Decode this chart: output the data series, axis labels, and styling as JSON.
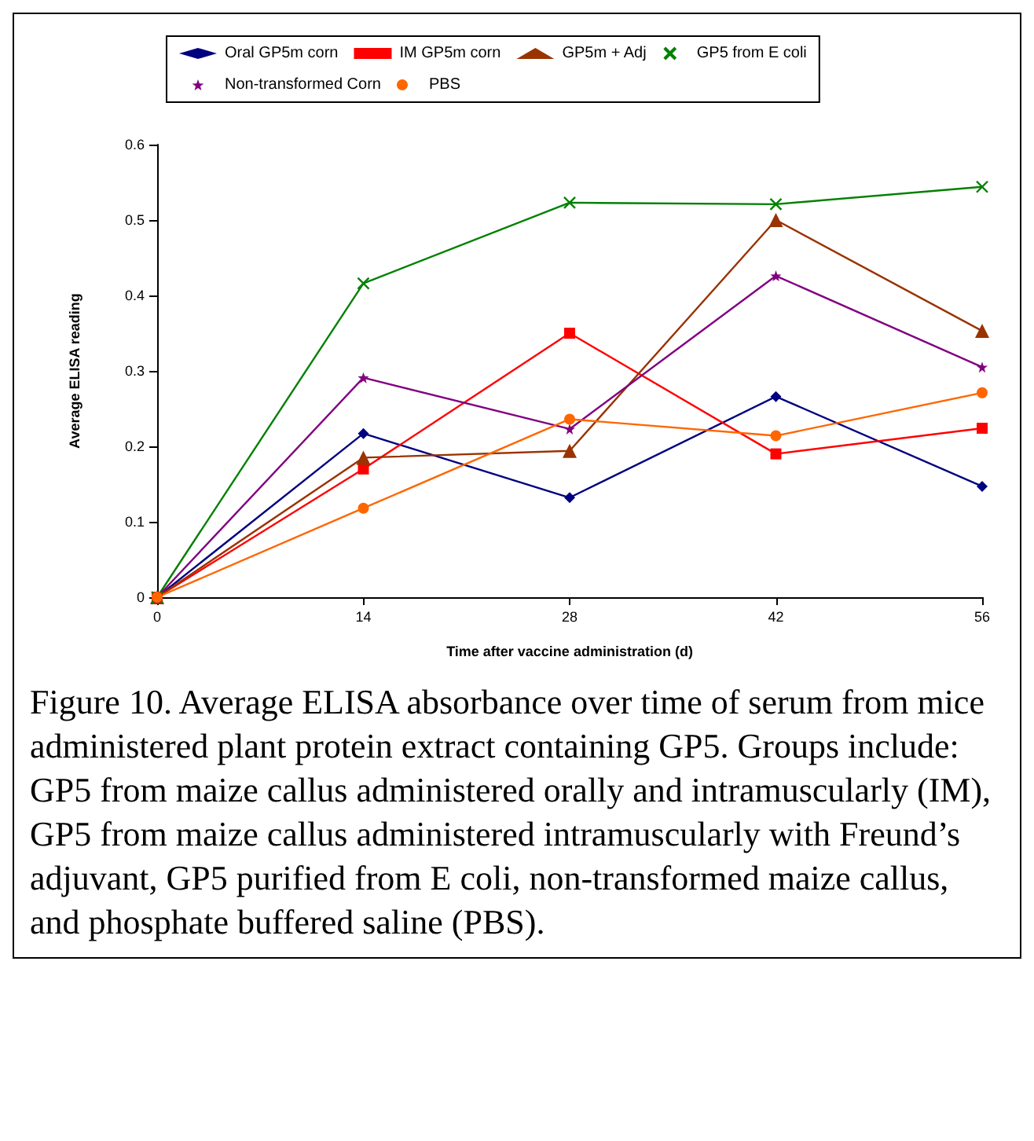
{
  "chart_data": {
    "type": "line",
    "x": [
      0,
      14,
      28,
      42,
      56
    ],
    "series": [
      {
        "name": "Oral GP5m corn",
        "color": "#000080",
        "marker": "diamond",
        "values": [
          0,
          0.217,
          0.132,
          0.266,
          0.147
        ]
      },
      {
        "name": "IM GP5m corn",
        "color": "#ff0000",
        "marker": "square",
        "values": [
          0,
          0.17,
          0.35,
          0.19,
          0.224
        ]
      },
      {
        "name": "GP5m + Adj",
        "color": "#993300",
        "marker": "triangle",
        "values": [
          0,
          0.185,
          0.194,
          0.5,
          0.353
        ]
      },
      {
        "name": "GP5 from E coli",
        "color": "#008000",
        "marker": "cross",
        "values": [
          0,
          0.416,
          0.523,
          0.521,
          0.544
        ]
      },
      {
        "name": "Non-transformed Corn",
        "color": "#800080",
        "marker": "star",
        "values": [
          0,
          0.291,
          0.223,
          0.426,
          0.305
        ]
      },
      {
        "name": "PBS",
        "color": "#ff6600",
        "marker": "circle",
        "values": [
          0,
          0.118,
          0.236,
          0.214,
          0.271
        ]
      }
    ],
    "xlabel": "Time after vaccine administration (d)",
    "ylabel": "Average ELISA reading",
    "xlim": [
      0,
      56
    ],
    "xticks": [
      0,
      14,
      28,
      42,
      56
    ],
    "ylim": [
      0,
      0.6
    ],
    "yticks": [
      0,
      0.1,
      0.2,
      0.3,
      0.4,
      0.5,
      0.6
    ],
    "grid": false,
    "legend": "top",
    "line_style": "solid",
    "annotations": [
      "Figure 10. Average ELISA absorbance over time of serum from mice administered plant protein extract containing GP5.  Groups include: GP5 from maize callus administered orally and intramuscularly (IM), GP5 from maize callus administered intramuscularly with Freund’s adjuvant, GP5 purified from E coli, non-transformed maize callus, and phosphate buffered saline (PBS)."
    ]
  }
}
